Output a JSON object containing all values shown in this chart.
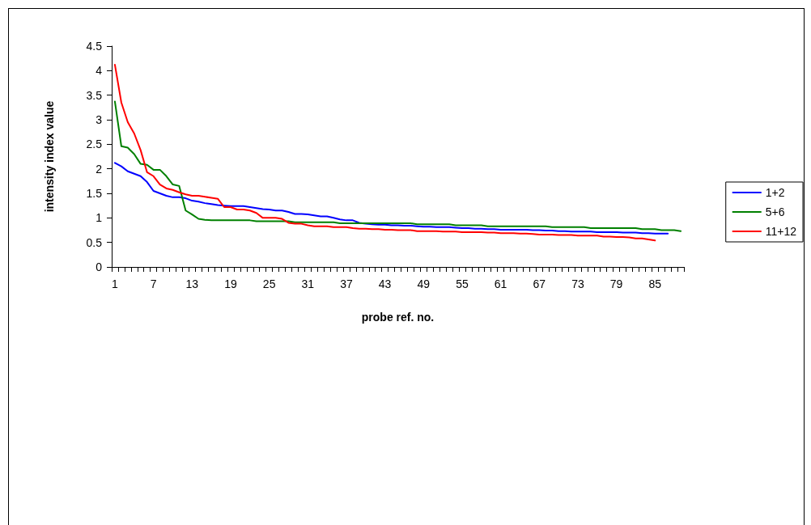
{
  "chart_data": {
    "type": "line",
    "xlabel": "probe ref. no.",
    "ylabel": "intensity index value",
    "categories": [
      "1",
      null,
      null,
      null,
      null,
      null,
      "7",
      null,
      null,
      null,
      null,
      null,
      "13",
      null,
      null,
      null,
      null,
      null,
      "19",
      null,
      null,
      null,
      null,
      null,
      "25",
      null,
      null,
      null,
      null,
      null,
      "31",
      null,
      null,
      null,
      null,
      null,
      "37",
      null,
      null,
      null,
      null,
      null,
      "43",
      null,
      null,
      null,
      null,
      null,
      "49",
      null,
      null,
      null,
      null,
      null,
      "55",
      null,
      null,
      null,
      null,
      null,
      "61",
      null,
      null,
      null,
      null,
      null,
      "67",
      null,
      null,
      null,
      null,
      null,
      "73",
      null,
      null,
      null,
      null,
      null,
      "79",
      null,
      null,
      null,
      null,
      null,
      "85",
      null,
      null,
      null,
      null
    ],
    "series": [
      {
        "name": "1+2",
        "color": "#0000ff",
        "values": [
          2.12,
          2.05,
          1.95,
          1.9,
          1.85,
          1.73,
          1.55,
          1.5,
          1.45,
          1.42,
          1.42,
          1.4,
          1.35,
          1.33,
          1.3,
          1.28,
          1.26,
          1.25,
          1.24,
          1.24,
          1.24,
          1.22,
          1.2,
          1.18,
          1.17,
          1.15,
          1.15,
          1.12,
          1.08,
          1.08,
          1.07,
          1.05,
          1.03,
          1.03,
          1.0,
          0.97,
          0.95,
          0.95,
          0.9,
          0.88,
          0.87,
          0.86,
          0.86,
          0.85,
          0.85,
          0.84,
          0.84,
          0.83,
          0.82,
          0.82,
          0.81,
          0.81,
          0.81,
          0.8,
          0.79,
          0.79,
          0.78,
          0.78,
          0.77,
          0.77,
          0.76,
          0.76,
          0.76,
          0.76,
          0.76,
          0.75,
          0.75,
          0.74,
          0.74,
          0.73,
          0.73,
          0.72,
          0.72,
          0.72,
          0.72,
          0.71,
          0.71,
          0.71,
          0.71,
          0.7,
          0.7,
          0.7,
          0.69,
          0.69,
          0.68,
          0.68,
          0.68,
          null,
          null
        ]
      },
      {
        "name": "5+6",
        "color": "#008000",
        "values": [
          3.37,
          2.46,
          2.43,
          2.3,
          2.1,
          2.08,
          1.98,
          1.98,
          1.85,
          1.68,
          1.65,
          1.15,
          1.07,
          0.98,
          0.96,
          0.95,
          0.95,
          0.95,
          0.95,
          0.95,
          0.95,
          0.95,
          0.93,
          0.93,
          0.93,
          0.93,
          0.93,
          0.93,
          0.91,
          0.91,
          0.91,
          0.91,
          0.91,
          0.91,
          0.91,
          0.89,
          0.89,
          0.89,
          0.89,
          0.89,
          0.89,
          0.89,
          0.89,
          0.89,
          0.89,
          0.89,
          0.89,
          0.87,
          0.87,
          0.87,
          0.87,
          0.87,
          0.87,
          0.85,
          0.85,
          0.85,
          0.85,
          0.85,
          0.83,
          0.83,
          0.83,
          0.83,
          0.83,
          0.83,
          0.83,
          0.83,
          0.83,
          0.83,
          0.81,
          0.81,
          0.81,
          0.81,
          0.81,
          0.81,
          0.79,
          0.79,
          0.79,
          0.79,
          0.79,
          0.79,
          0.79,
          0.79,
          0.77,
          0.77,
          0.77,
          0.75,
          0.75,
          0.75,
          0.73
        ]
      },
      {
        "name": "11+12",
        "color": "#ff0000",
        "values": [
          4.12,
          3.35,
          2.95,
          2.72,
          2.38,
          1.93,
          1.85,
          1.68,
          1.6,
          1.57,
          1.52,
          1.48,
          1.45,
          1.45,
          1.43,
          1.41,
          1.39,
          1.22,
          1.22,
          1.17,
          1.17,
          1.15,
          1.1,
          1.0,
          1.0,
          1.0,
          0.98,
          0.9,
          0.88,
          0.88,
          0.85,
          0.83,
          0.83,
          0.83,
          0.81,
          0.81,
          0.81,
          0.79,
          0.78,
          0.78,
          0.77,
          0.77,
          0.76,
          0.76,
          0.75,
          0.75,
          0.75,
          0.73,
          0.73,
          0.73,
          0.73,
          0.72,
          0.72,
          0.72,
          0.71,
          0.71,
          0.71,
          0.71,
          0.7,
          0.7,
          0.69,
          0.69,
          0.69,
          0.68,
          0.68,
          0.67,
          0.66,
          0.66,
          0.66,
          0.65,
          0.65,
          0.65,
          0.64,
          0.64,
          0.64,
          0.64,
          0.62,
          0.62,
          0.61,
          0.61,
          0.6,
          0.58,
          0.58,
          0.56,
          0.54,
          null,
          null,
          null,
          null
        ]
      }
    ],
    "ylim": [
      0,
      4.5
    ],
    "yticks": [
      0,
      0.5,
      1,
      1.5,
      2,
      2.5,
      3,
      3.5,
      4,
      4.5
    ],
    "grid": false,
    "legend": "right",
    "marker": "none",
    "line_style": "solid"
  }
}
